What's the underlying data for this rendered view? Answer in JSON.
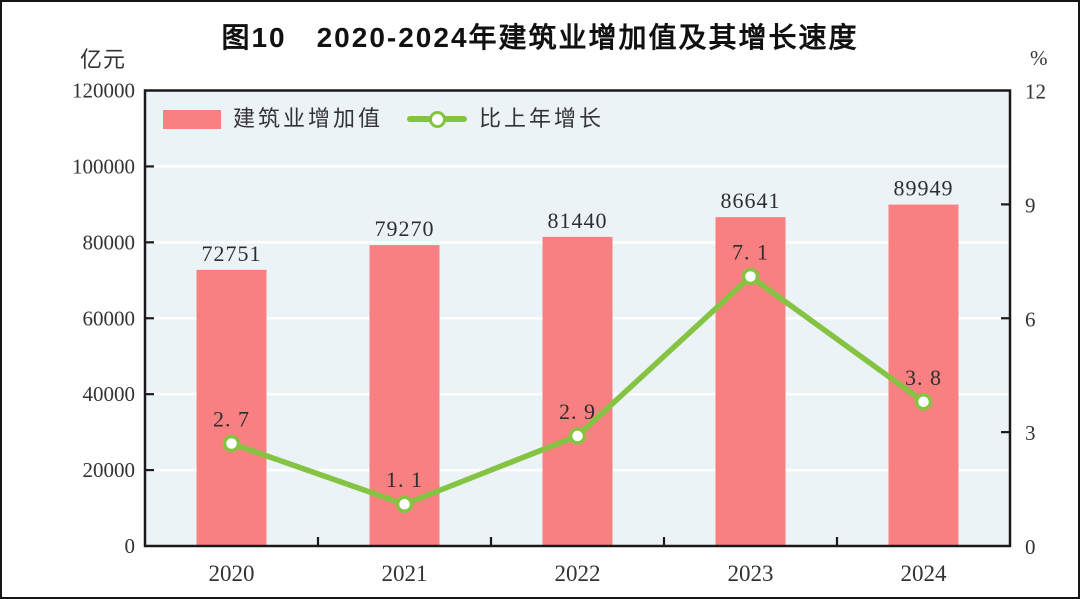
{
  "figure": {
    "title": "图10　2020-2024年建筑业增加值及其增长速度",
    "left_unit": "亿元",
    "right_unit": "%"
  },
  "legend": {
    "bar_label": "建筑业增加值",
    "line_label": "比上年增长"
  },
  "colors": {
    "bar": "#F98080",
    "line": "#85C342",
    "plot_bg": "#ECF3F7",
    "grid": "#FFFFFF",
    "axis": "#1A1A1A",
    "text": "#333333"
  },
  "chart_data": {
    "type": "bar",
    "subtype": "bar+line combo, dual axis",
    "title": "图10　2020-2024年建筑业增加值及其增长速度",
    "categories": [
      "2020",
      "2021",
      "2022",
      "2023",
      "2024"
    ],
    "series": [
      {
        "name": "建筑业增加值",
        "type": "bar",
        "axis": "left",
        "unit": "亿元",
        "values": [
          72751,
          79270,
          81440,
          86641,
          89949
        ]
      },
      {
        "name": "比上年增长",
        "type": "line",
        "axis": "right",
        "unit": "%",
        "values": [
          2.7,
          1.1,
          2.9,
          7.1,
          3.8
        ]
      }
    ],
    "left_axis": {
      "label": "亿元",
      "min": 0,
      "max": 120000,
      "step": 20000,
      "ticks": [
        0,
        20000,
        40000,
        60000,
        80000,
        100000,
        120000
      ]
    },
    "right_axis": {
      "label": "%",
      "min": 0,
      "max": 12,
      "step": 3,
      "ticks": [
        0,
        3,
        6,
        9,
        12
      ]
    },
    "grid": true,
    "legend_position": "top-left-inside"
  }
}
